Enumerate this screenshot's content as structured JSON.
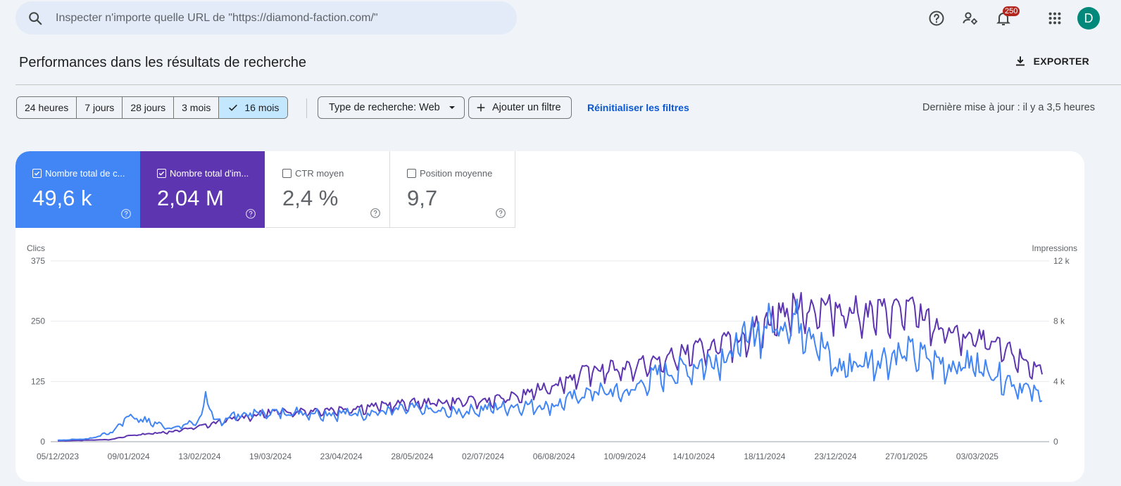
{
  "search": {
    "placeholder": "Inspecter n'importe quelle URL de \"https://diamond-faction.com/\""
  },
  "header": {
    "icons": [
      "help-icon",
      "manage-accounts-icon",
      "notifications-icon",
      "apps-icon"
    ],
    "notification_count": "250",
    "avatar_letter": "D"
  },
  "page": {
    "title": "Performances dans les résultats de recherche",
    "export_label": "EXPORTER"
  },
  "filters": {
    "ranges": [
      "24 heures",
      "7 jours",
      "28 jours",
      "3 mois",
      "16 mois"
    ],
    "selected_range": "16 mois",
    "search_type": "Type de recherche: Web",
    "add_filter": "Ajouter un filtre",
    "reset": "Réinitialiser les filtres",
    "last_update": "Dernière mise à jour : il y a 3,5 heures"
  },
  "metrics": [
    {
      "label": "Nombre total de c...",
      "value": "49,6 k",
      "checked": true,
      "color": "#4285f4"
    },
    {
      "label": "Nombre total d'im...",
      "value": "2,04 M",
      "checked": true,
      "color": "#5e35b1"
    },
    {
      "label": "CTR moyen",
      "value": "2,4 %",
      "checked": false
    },
    {
      "label": "Position moyenne",
      "value": "9,7",
      "checked": false
    }
  ],
  "chart_data": {
    "type": "line",
    "left_axis_label": "Clics",
    "right_axis_label": "Impressions",
    "left_ticks": [
      "375",
      "250",
      "125",
      "0"
    ],
    "right_ticks": [
      "12 k",
      "8 k",
      "4 k",
      "0"
    ],
    "ylim_left": [
      0,
      375
    ],
    "ylim_right": [
      0,
      12000
    ],
    "x_ticks": [
      "05/12/2023",
      "09/01/2024",
      "13/02/2024",
      "19/03/2024",
      "23/04/2024",
      "28/05/2024",
      "02/07/2024",
      "06/08/2024",
      "10/09/2024",
      "14/10/2024",
      "18/11/2024",
      "23/12/2024",
      "27/01/2025",
      "03/03/2025"
    ],
    "x_range": [
      "05/12/2023",
      "04/04/2025"
    ],
    "series": [
      {
        "name": "Clics",
        "axis": "left",
        "color": "#4285f4",
        "points": [
          [
            "05/12/2023",
            3
          ],
          [
            "20/12/2023",
            6
          ],
          [
            "01/01/2024",
            20
          ],
          [
            "09/01/2024",
            55
          ],
          [
            "20/01/2024",
            40
          ],
          [
            "01/02/2024",
            28
          ],
          [
            "13/02/2024",
            45
          ],
          [
            "16/02/2024",
            92
          ],
          [
            "20/02/2024",
            40
          ],
          [
            "01/03/2024",
            55
          ],
          [
            "19/03/2024",
            60
          ],
          [
            "01/04/2024",
            62
          ],
          [
            "23/04/2024",
            58
          ],
          [
            "15/05/2024",
            62
          ],
          [
            "28/05/2024",
            68
          ],
          [
            "15/06/2024",
            60
          ],
          [
            "02/07/2024",
            68
          ],
          [
            "20/07/2024",
            75
          ],
          [
            "06/08/2024",
            75
          ],
          [
            "25/08/2024",
            105
          ],
          [
            "10/09/2024",
            100
          ],
          [
            "25/09/2024",
            135
          ],
          [
            "14/10/2024",
            155
          ],
          [
            "01/11/2024",
            185
          ],
          [
            "18/11/2024",
            240
          ],
          [
            "01/12/2024",
            255
          ],
          [
            "10/12/2024",
            240
          ],
          [
            "23/12/2024",
            150
          ],
          [
            "05/01/2025",
            165
          ],
          [
            "27/01/2025",
            185
          ],
          [
            "15/02/2025",
            160
          ],
          [
            "03/03/2025",
            160
          ],
          [
            "20/03/2025",
            125
          ],
          [
            "04/04/2025",
            92
          ]
        ]
      },
      {
        "name": "Impressions",
        "axis": "right",
        "color": "#5e35b1",
        "points": [
          [
            "05/12/2023",
            50
          ],
          [
            "01/01/2024",
            150
          ],
          [
            "09/01/2024",
            400
          ],
          [
            "01/02/2024",
            700
          ],
          [
            "13/02/2024",
            1000
          ],
          [
            "01/03/2024",
            1500
          ],
          [
            "19/03/2024",
            1950
          ],
          [
            "23/04/2024",
            2150
          ],
          [
            "28/05/2024",
            2550
          ],
          [
            "02/07/2024",
            2700
          ],
          [
            "20/07/2024",
            3000
          ],
          [
            "06/08/2024",
            3800
          ],
          [
            "25/08/2024",
            4700
          ],
          [
            "10/09/2024",
            4900
          ],
          [
            "25/09/2024",
            5200
          ],
          [
            "14/10/2024",
            6000
          ],
          [
            "01/11/2024",
            6500
          ],
          [
            "18/11/2024",
            7800
          ],
          [
            "01/12/2024",
            8800
          ],
          [
            "23/12/2024",
            8800
          ],
          [
            "10/01/2025",
            8400
          ],
          [
            "27/01/2025",
            8800
          ],
          [
            "15/02/2025",
            7300
          ],
          [
            "03/03/2025",
            6700
          ],
          [
            "20/03/2025",
            5800
          ],
          [
            "04/04/2025",
            4600
          ]
        ]
      }
    ]
  }
}
